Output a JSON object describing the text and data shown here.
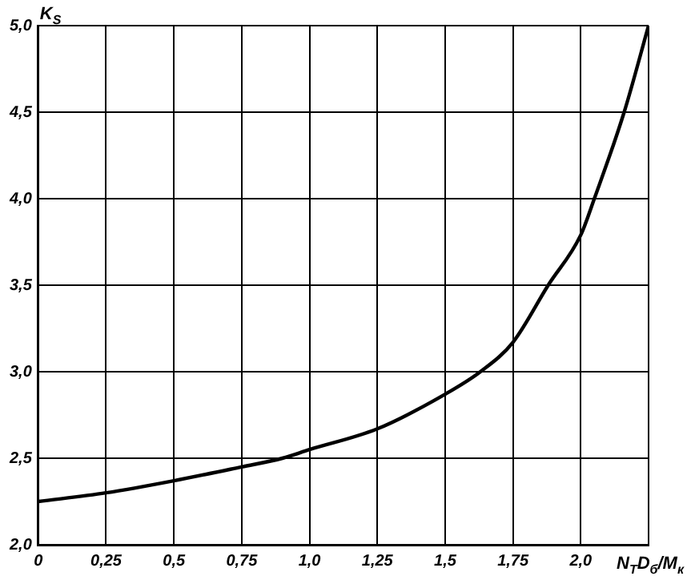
{
  "chart_data": {
    "type": "line",
    "xlabel": "N$_{T}$D$_{б}$/M$_{к}$",
    "ylabel": "K$_{S}$",
    "x": [
      0,
      0.25,
      0.5,
      0.75,
      0.9,
      1.0,
      1.25,
      1.5,
      1.63,
      1.75,
      1.88,
      2.0,
      2.05,
      2.16,
      2.25
    ],
    "series": [
      {
        "color": "#000000",
        "values": [
          2.25,
          2.3,
          2.37,
          2.45,
          2.5,
          2.55,
          2.67,
          2.87,
          3.0,
          3.17,
          3.5,
          3.79,
          4.0,
          4.5,
          5.0
        ]
      }
    ],
    "xlim": [
      0,
      2.25
    ],
    "ylim": [
      2.0,
      5.0
    ],
    "xticks": [
      0,
      {
        "value": 0.25,
        "label": "0,25"
      },
      {
        "value": 0.5,
        "label": "0,5"
      },
      {
        "value": 0.75,
        "label": "0,75"
      },
      {
        "value": 1.0,
        "label": "1,0"
      },
      {
        "value": 1.25,
        "label": "1,25"
      },
      {
        "value": 1.5,
        "label": "1,5"
      },
      {
        "value": 1.75,
        "label": "1,75"
      },
      {
        "value": 2.0,
        "label": "2,0"
      },
      {
        "value": 2.25,
        "label": null
      }
    ],
    "yticks": [
      {
        "value": 2.0,
        "label": "2,0"
      },
      {
        "value": 2.5,
        "label": "2,5"
      },
      {
        "value": 3.0,
        "label": "3,0"
      },
      {
        "value": 3.5,
        "label": "3,5"
      },
      {
        "value": 4.0,
        "label": "4,0"
      },
      {
        "value": 4.5,
        "label": "4,5"
      },
      {
        "value": 5.0,
        "label": "5,0"
      }
    ],
    "grid": true,
    "marker": "none",
    "line_style": "solid",
    "legend": false
  }
}
